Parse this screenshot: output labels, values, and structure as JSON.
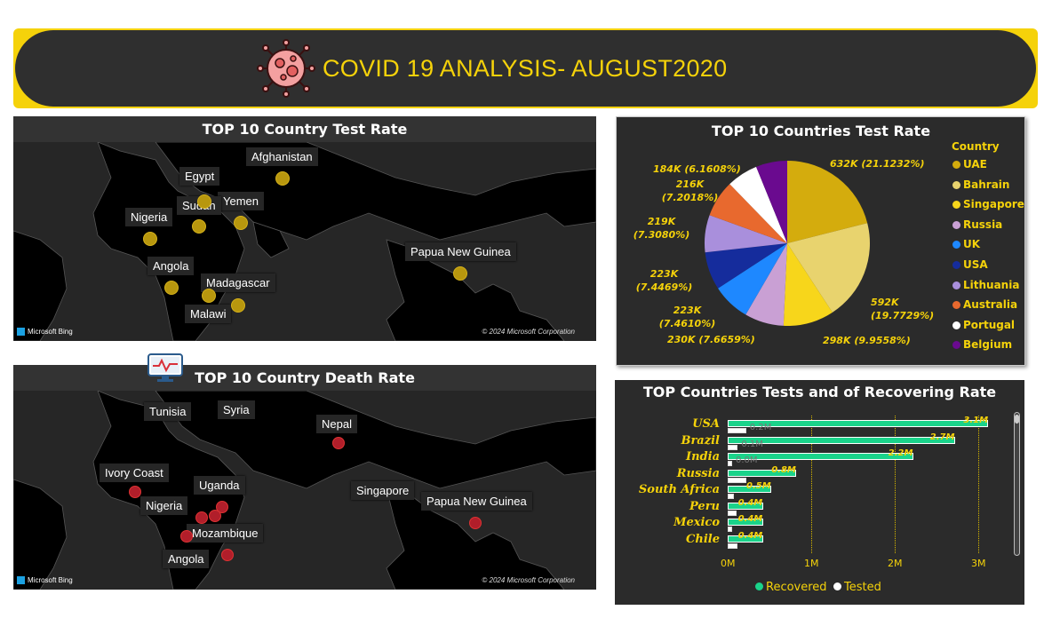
{
  "header": {
    "title": "COVID 19 ANALYSIS- AUGUST2020"
  },
  "test_map": {
    "title": "TOP 10 Country Test Rate",
    "labels": [
      "Afghanistan",
      "Egypt",
      "Yemen",
      "Sudan",
      "Nigeria",
      "Papua New Guinea",
      "Angola",
      "Madagascar",
      "Malawi"
    ],
    "attribution": "Microsoft Bing",
    "copyright": "© 2024 Microsoft Corporation"
  },
  "death_map": {
    "title": "TOP 10 Country Death Rate",
    "labels": [
      "Tunisia",
      "Syria",
      "Nepal",
      "Ivory Coast",
      "Uganda",
      "Nigeria",
      "Singapore",
      "Papua New Guinea",
      "Mozambique",
      "Angola"
    ],
    "attribution": "Microsoft Bing",
    "copyright": "© 2024 Microsoft Corporation"
  },
  "chart_data": [
    {
      "type": "pie",
      "title": "TOP 10 Countries Test Rate",
      "legend_title": "Country",
      "legend_position": "right",
      "slices": [
        {
          "name": "UAE",
          "value": 632,
          "label": "632K (21.1232%)",
          "color": "#d4ac0d"
        },
        {
          "name": "Bahrain",
          "value": 592,
          "label": "592K (19.7729%)",
          "color": "#e8d36e"
        },
        {
          "name": "Singapore",
          "value": 298,
          "label": "298K (9.9558%)",
          "color": "#f7d61b"
        },
        {
          "name": "Russia",
          "value": 230,
          "label": "230K (7.6659%)",
          "color": "#c9a0d4"
        },
        {
          "name": "UK",
          "value": 223,
          "label": "223K (7.4610%)",
          "color": "#1e88ff"
        },
        {
          "name": "USA",
          "value": 223,
          "label": "223K (7.4469%)",
          "color": "#152c9c"
        },
        {
          "name": "Lithuania",
          "value": 219,
          "label": "219K (7.3080%)",
          "color": "#a98fdc"
        },
        {
          "name": "Australia",
          "value": 216,
          "label": "216K (7.2018%)",
          "color": "#e8692e"
        },
        {
          "name": "Portugal",
          "value": 184,
          "label": "184K (6.1608%)",
          "color": "#ffffff"
        },
        {
          "name": "Belgium",
          "value": 184,
          "label": "",
          "color": "#6a0a8f"
        }
      ]
    },
    {
      "type": "bar",
      "orientation": "horizontal",
      "title": "TOP Countries Tests and of Recovering Rate",
      "categories": [
        "USA",
        "Brazil",
        "India",
        "Russia",
        "South Africa",
        "Peru",
        "Mexico",
        "Chile"
      ],
      "series": [
        {
          "name": "Recovered",
          "color": "#1ad38a",
          "values": [
            3.1,
            2.7,
            2.2,
            0.8,
            0.5,
            0.4,
            0.4,
            0.4
          ],
          "labels": [
            "3.1M",
            "2.7M",
            "2.2M",
            "0.8M",
            "0.5M",
            "0.4M",
            "0.4M",
            "0.4M"
          ]
        },
        {
          "name": "Tested",
          "color": "#ffffff",
          "values": [
            0.2,
            0.1,
            0.0,
            0.2,
            0.05,
            0.08,
            0.03,
            0.1
          ],
          "labels": [
            "0.2M",
            "0.1M",
            "0.0M",
            "",
            "",
            "",
            "",
            ""
          ]
        }
      ],
      "xlim": [
        0,
        3.2
      ],
      "xticks": [
        "0M",
        "1M",
        "2M",
        "3M"
      ],
      "legend_position": "bottom"
    }
  ]
}
